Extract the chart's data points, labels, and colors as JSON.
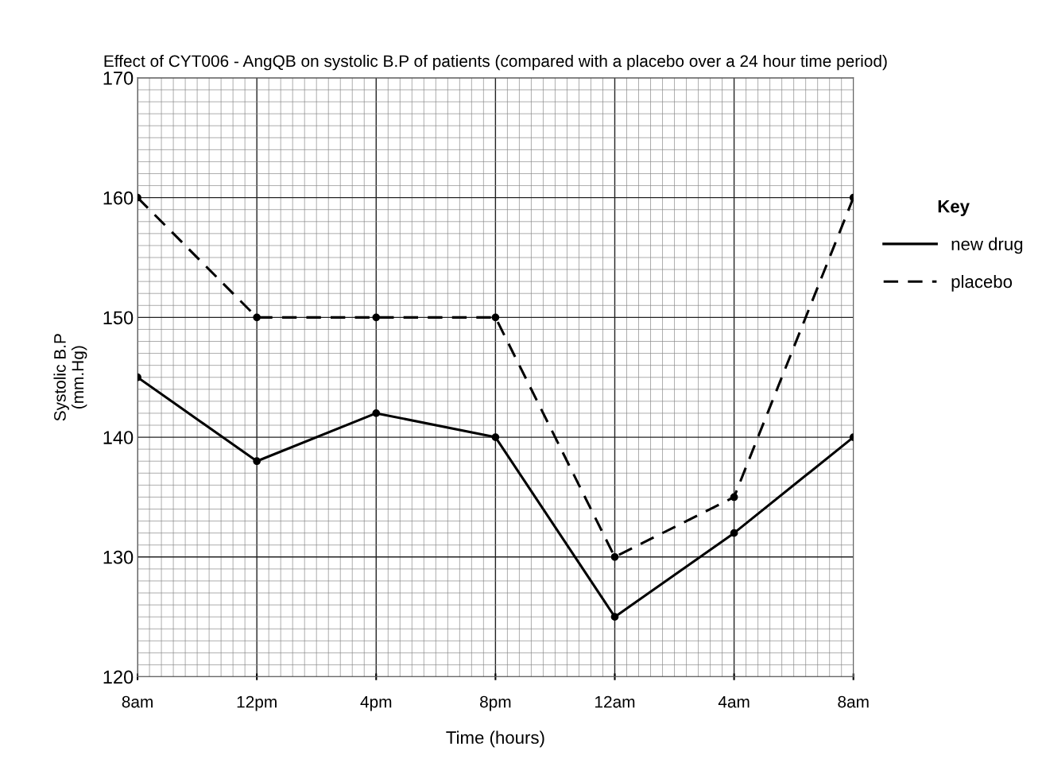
{
  "chart_data": {
    "type": "line",
    "title": "Effect of CYT006 - AngQB on systolic B.P of patients (compared with a placebo over a 24 hour time period)",
    "xlabel": "Time (hours)",
    "ylabel": "Systolic B.P\n(mm.Hg)",
    "legend_title": "Key",
    "categories": [
      "8am",
      "12pm",
      "4pm",
      "8pm",
      "12am",
      "4am",
      "8am"
    ],
    "series": [
      {
        "name": "new drug",
        "color": "#000000",
        "line_style": "solid",
        "values": [
          145,
          138,
          142,
          140,
          125,
          132,
          140
        ]
      },
      {
        "name": "placebo",
        "color": "#000000",
        "line_style": "dashed",
        "values": [
          160,
          150,
          150,
          150,
          130,
          135,
          160
        ]
      }
    ],
    "ylim": [
      120,
      170
    ],
    "yticks": [
      120,
      130,
      140,
      150,
      160,
      170
    ],
    "grid": true,
    "legend": "right",
    "marker": "circle"
  }
}
